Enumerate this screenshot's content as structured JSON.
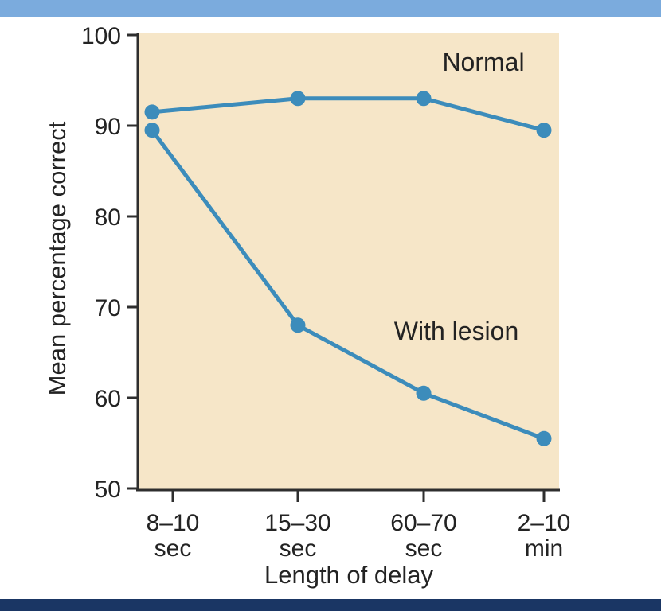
{
  "page": {
    "top_bar_color": "#7babdd",
    "bottom_bar_color": "#1a3664",
    "background_color": "#ffffff"
  },
  "chart_data": {
    "type": "line",
    "title": "",
    "xlabel": "Length of delay",
    "ylabel": "Mean percentage correct",
    "ylim": [
      50,
      100
    ],
    "yticks": [
      100,
      90,
      80,
      70,
      60,
      50
    ],
    "categories": [
      "8–10",
      "15–30",
      "60–70",
      "2–10"
    ],
    "category_units": [
      "sec",
      "sec",
      "sec",
      "min"
    ],
    "series": [
      {
        "name": "Normal",
        "values": [
          91.5,
          93,
          93,
          89.5
        ]
      },
      {
        "name": "With lesion",
        "values": [
          89.5,
          68,
          60.5,
          55.5
        ]
      }
    ],
    "annotations": [
      {
        "text": "Normal",
        "attached_to": "series-0"
      },
      {
        "text": "With lesion",
        "attached_to": "series-1"
      }
    ],
    "legend_position": "inline-annotations",
    "grid": false,
    "colors": {
      "line": "#3c8cbb",
      "plot_background": "#f6e6c8",
      "axis": "#2e2e2e",
      "text": "#232323"
    },
    "marker": "circle"
  }
}
